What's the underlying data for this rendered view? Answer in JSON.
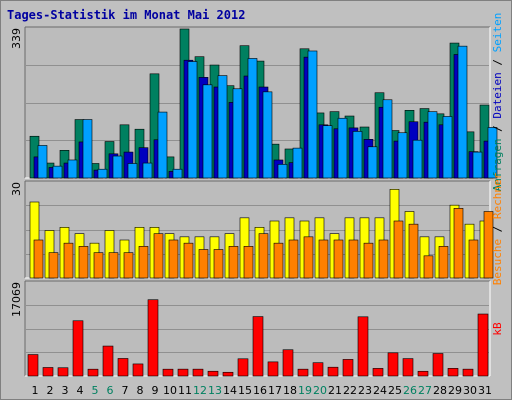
{
  "title": "Tages-Statistik im Monat Mai 2012",
  "chart_data": [
    {
      "type": "bar",
      "panel": "top",
      "ymax_label": "339",
      "ylim": [
        0,
        339
      ],
      "series": [
        {
          "name": "Anfragen",
          "color": "#008060",
          "values": [
            95,
            34,
            63,
            133,
            33,
            83,
            121,
            111,
            237,
            48,
            339,
            276,
            257,
            210,
            301,
            266,
            77,
            66,
            294,
            148,
            151,
            141,
            116,
            194,
            108,
            154,
            158,
            146,
            307,
            105,
            166
          ]
        },
        {
          "name": "Dateien",
          "color": "#0000c0",
          "values": [
            48,
            24,
            34,
            82,
            18,
            55,
            59,
            69,
            87,
            15,
            268,
            229,
            207,
            172,
            232,
            207,
            41,
            35,
            275,
            121,
            112,
            114,
            88,
            161,
            84,
            128,
            127,
            121,
            281,
            60,
            84
          ]
        },
        {
          "name": "Seiten",
          "color": "#00a0ff",
          "values": [
            74,
            27,
            41,
            133,
            20,
            50,
            33,
            34,
            150,
            20,
            265,
            212,
            233,
            203,
            272,
            196,
            31,
            68,
            289,
            119,
            136,
            106,
            71,
            178,
            103,
            86,
            151,
            140,
            300,
            59,
            115
          ]
        }
      ],
      "y_side_label": [
        {
          "text": "Anfragen",
          "color": "#008060"
        },
        {
          "text": " / ",
          "color": "#000000"
        },
        {
          "text": "Dateien",
          "color": "#0000c0"
        },
        {
          "text": " / ",
          "color": "#000000"
        },
        {
          "text": "Seiten",
          "color": "#00a0ff"
        }
      ]
    },
    {
      "type": "bar",
      "panel": "middle",
      "ymax_label": "30",
      "ylim": [
        0,
        30
      ],
      "series": [
        {
          "name": "Besuche",
          "color": "#ffff00",
          "values": [
            24,
            15,
            16,
            14,
            11,
            15,
            12,
            16,
            16,
            14,
            13,
            13,
            13,
            14,
            19,
            16,
            18,
            19,
            18,
            19,
            14,
            19,
            19,
            19,
            28,
            21,
            13,
            13,
            23,
            17,
            18
          ]
        },
        {
          "name": "Rechner",
          "color": "#ff8000",
          "values": [
            12,
            8,
            11,
            10,
            8,
            8,
            8,
            10,
            14,
            12,
            11,
            9,
            9,
            10,
            10,
            14,
            11,
            12,
            13,
            12,
            12,
            12,
            11,
            12,
            18,
            17,
            7,
            10,
            22,
            12,
            21
          ]
        }
      ],
      "y_side_label": [
        {
          "text": "Besuche",
          "color": "#ff8000"
        },
        {
          "text": " / ",
          "color": "#000000"
        },
        {
          "text": "Rechner",
          "color": "#ff8000"
        }
      ]
    },
    {
      "type": "bar",
      "panel": "bottom",
      "ymax_label": "17069",
      "ylim": [
        0,
        17069
      ],
      "series": [
        {
          "name": "kB",
          "color": "#ff0000",
          "values": [
            3937,
            1562,
            1516,
            10141,
            1251,
            5495,
            3218,
            2214,
            14000,
            1251,
            1259,
            1256,
            874,
            687,
            3161,
            10906,
            2591,
            4820,
            1254,
            2443,
            1615,
            3044,
            10866,
            1395,
            4254,
            3196,
            869,
            4127,
            1404,
            1256,
            11375
          ]
        }
      ],
      "y_side_label": [
        {
          "text": "kB",
          "color": "#ff0000"
        }
      ]
    }
  ],
  "x_days": [
    {
      "label": "1",
      "color": "#000000"
    },
    {
      "label": "2",
      "color": "#000000"
    },
    {
      "label": "3",
      "color": "#000000"
    },
    {
      "label": "4",
      "color": "#000000"
    },
    {
      "label": "5",
      "color": "#008060"
    },
    {
      "label": "6",
      "color": "#008060"
    },
    {
      "label": "7",
      "color": "#000000"
    },
    {
      "label": "8",
      "color": "#000000"
    },
    {
      "label": "9",
      "color": "#000000"
    },
    {
      "label": "10",
      "color": "#000000"
    },
    {
      "label": "11",
      "color": "#000000"
    },
    {
      "label": "12",
      "color": "#008060"
    },
    {
      "label": "13",
      "color": "#008060"
    },
    {
      "label": "14",
      "color": "#000000"
    },
    {
      "label": "15",
      "color": "#000000"
    },
    {
      "label": "16",
      "color": "#000000"
    },
    {
      "label": "17",
      "color": "#000000"
    },
    {
      "label": "18",
      "color": "#000000"
    },
    {
      "label": "19",
      "color": "#008060"
    },
    {
      "label": "20",
      "color": "#008060"
    },
    {
      "label": "21",
      "color": "#000000"
    },
    {
      "label": "22",
      "color": "#000000"
    },
    {
      "label": "23",
      "color": "#000000"
    },
    {
      "label": "24",
      "color": "#000000"
    },
    {
      "label": "25",
      "color": "#000000"
    },
    {
      "label": "26",
      "color": "#008060"
    },
    {
      "label": "27",
      "color": "#008060"
    },
    {
      "label": "28",
      "color": "#000000"
    },
    {
      "label": "29",
      "color": "#000000"
    },
    {
      "label": "30",
      "color": "#000000"
    },
    {
      "label": "31",
      "color": "#000000"
    }
  ]
}
